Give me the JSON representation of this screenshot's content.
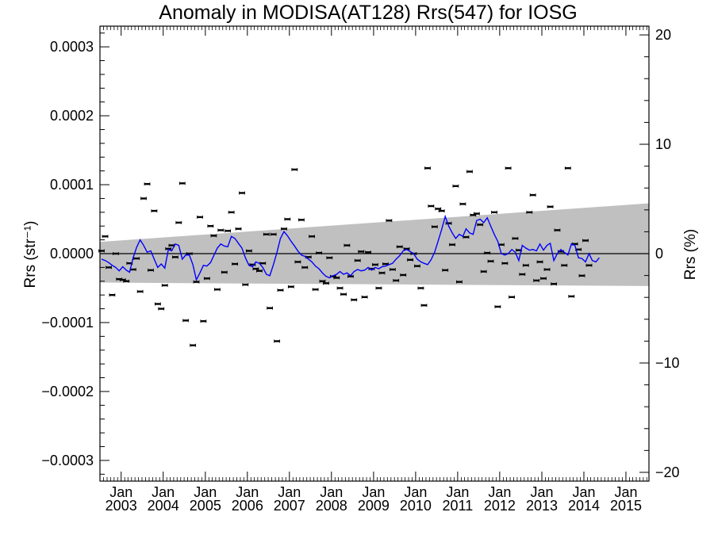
{
  "chart_data": {
    "type": "scatter",
    "title": "Anomaly in MODISA(AT128) Rrs(547) for IOSG",
    "ylabel_left": "Rrs (str⁻¹)",
    "ylabel_right": "Rrs (%)",
    "xlim": [
      "2002-07-01",
      "2015-07-20"
    ],
    "ylim_left": [
      -0.00033,
      0.00033
    ],
    "ylim_right": [
      -20.8,
      20.8
    ],
    "yticks_left": [
      "0.0003",
      "0.0002",
      "0.0001",
      "0.0000",
      "−0.0001",
      "−0.0002",
      "−0.0003"
    ],
    "yticks_right": [
      "20",
      "10",
      "0",
      "−10",
      "−20"
    ],
    "xticks": [
      {
        "month": "Jan",
        "year": "2003"
      },
      {
        "month": "Jan",
        "year": "2004"
      },
      {
        "month": "Jan",
        "year": "2005"
      },
      {
        "month": "Jan",
        "year": "2006"
      },
      {
        "month": "Jan",
        "year": "2007"
      },
      {
        "month": "Jan",
        "year": "2008"
      },
      {
        "month": "Jan",
        "year": "2009"
      },
      {
        "month": "Jan",
        "year": "2010"
      },
      {
        "month": "Jan",
        "year": "2011"
      },
      {
        "month": "Jan",
        "year": "2012"
      },
      {
        "month": "Jan",
        "year": "2013"
      },
      {
        "month": "Jan",
        "year": "2014"
      },
      {
        "month": "Jan",
        "year": "2015"
      }
    ],
    "band": {
      "start": "2002-07-01",
      "end": "2015-07-20",
      "upper": [
        1.7e-05,
        7.3e-05
      ],
      "lower": [
        -4.2e-05,
        -4.7e-05
      ],
      "color": "#c0c0c0"
    },
    "zero_line": 0.0,
    "series": [
      {
        "kind": "monthly_points",
        "color": "#000000",
        "start": "2002-07",
        "values": [
          4e-06,
          2.5e-05,
          -2e-05,
          -6e-05,
          0.0,
          -3.7e-05,
          -3.8e-05,
          -4e-05,
          -1.4e-05,
          -2.3e-05,
          -7e-06,
          -5.5e-05,
          8e-05,
          0.000101,
          -2.4e-05,
          6.2e-05,
          -7.3e-05,
          -8e-05,
          -4.6e-05,
          7e-06,
          1.2e-05,
          -5e-06,
          4.5e-05,
          0.000102,
          -9.7e-05,
          0.0,
          -0.000133,
          -4.1e-05,
          5.3e-05,
          -9.8e-05,
          -3.6e-05,
          4e-05,
          2.6e-05,
          -5.2e-05,
          3.4e-05,
          -2.7e-05,
          3.3e-05,
          6e-05,
          -1.5e-05,
          3.6e-05,
          8.8e-05,
          -4.5e-05,
          4e-06,
          -1.6e-05,
          -2.2e-05,
          -2.5e-05,
          -1.4e-05,
          2.8e-05,
          -7.9e-05,
          2.8e-05,
          -0.000127,
          -5.3e-05,
          3.6e-05,
          5e-05,
          -4.8e-05,
          0.000122,
          -1.2e-05,
          4.9e-05,
          -2e-05,
          -5e-06,
          2.5e-05,
          -5.2e-05,
          1e-06,
          -4e-05,
          -4.3e-05,
          -6e-06,
          -3.3e-05,
          -3.5e-05,
          -5e-05,
          -5.9e-05,
          1.2e-05,
          -3.3e-05,
          -6.7e-05,
          -1e-05,
          3e-06,
          -6.3e-05,
          2e-06,
          -2.2e-05,
          -1.6e-05,
          -5e-05,
          -2.8e-05,
          -1.5e-05,
          4.8e-05,
          -2.3e-05,
          -3.9e-05,
          1e-05,
          -3.1e-05,
          7e-06,
          -9e-06,
          0.0,
          -1.8e-05,
          -5e-05,
          -7.5e-05,
          0.000124,
          6.9e-05,
          3.9e-05,
          6.5e-05,
          6.2e-05,
          -2.4e-05,
          4.4e-05,
          1.3e-05,
          9.8e-05,
          -4.1e-05,
          7.2e-05,
          2.4e-05,
          0.000119,
          5.6e-05,
          5.8e-05,
          4.2e-05,
          -2.6e-05,
          1e-06,
          -1.1e-05,
          6e-05,
          -7.7e-05,
          1.3e-05,
          -1.4e-05,
          0.000124,
          -6.3e-05,
          2.2e-05,
          5e-06,
          -3e-05,
          -1.7e-05,
          6e-05,
          8.5e-05,
          -3.9e-05,
          -1.2e-05,
          -3.6e-05,
          -2.3e-05,
          6.8e-05,
          -4.4e-05,
          3.4e-05,
          3e-06,
          -1.7e-05,
          0.000124,
          -6.2e-05,
          1.4e-05,
          6e-06,
          -3.2e-05,
          1.9e-05,
          -1.7e-05
        ]
      },
      {
        "kind": "running_mean",
        "color": "#0000ff",
        "start": "2002-07",
        "values": [
          -8e-06,
          -1e-05,
          -1.3e-05,
          -1.7e-05,
          -2e-05,
          -2.5e-05,
          -1.9e-05,
          -2.4e-05,
          -2.7e-05,
          -6e-06,
          9e-06,
          2e-05,
          1.2e-05,
          2e-06,
          4e-06,
          -8e-06,
          -2e-05,
          -1.5e-05,
          -2.1e-05,
          6e-06,
          4e-06,
          1.4e-05,
          1.2e-05,
          -8e-06,
          -2e-06,
          -2e-06,
          -1.6e-05,
          -3.8e-05,
          -2.8e-05,
          -1.7e-05,
          -1.8e-05,
          -1.3e-05,
          -3e-06,
          8e-06,
          1.4e-05,
          1.1e-05,
          1e-05,
          2.5e-05,
          2.2e-05,
          1.5e-05,
          8e-06,
          -6e-06,
          -1.7e-05,
          -1.9e-05,
          -1.2e-05,
          -1.4e-05,
          -2e-05,
          -3e-05,
          -3.2e-05,
          -1.6e-05,
          2e-06,
          2.2e-05,
          3.2e-05,
          2.6e-05,
          1.8e-05,
          1.1e-05,
          4e-06,
          -2e-06,
          -4e-06,
          -8e-06,
          -1.2e-05,
          -1.8e-05,
          -2.2e-05,
          -2.8e-05,
          -3.3e-05,
          -3.5e-05,
          -3.2e-05,
          -3e-05,
          -2.6e-05,
          -3e-05,
          -2.8e-05,
          -3.2e-05,
          -2.6e-05,
          -2.3e-05,
          -2.5e-05,
          -2.4e-05,
          -2e-05,
          -2.4e-05,
          -2e-05,
          -2.2e-05,
          -1.9e-05,
          -1.8e-05,
          -1.6e-05,
          -1.4e-05,
          -8e-06,
          -3e-06,
          4e-06,
          6e-06,
          3e-06,
          0.0,
          -8e-06,
          -1.2e-05,
          -1.4e-05,
          -1.6e-05,
          -9e-06,
          2e-06,
          1.8e-05,
          3.5e-05,
          5.4e-05,
          4e-05,
          3e-05,
          2.2e-05,
          2.8e-05,
          2.5e-05,
          3.6e-05,
          3e-05,
          2.8e-05,
          4.8e-05,
          5e-05,
          4.5e-05,
          5.2e-05,
          4e-05,
          2.8e-05,
          1.8e-05,
          0.0,
          -2e-06,
          0.0,
          6e-06,
          2e-06,
          -1e-05,
          1.2e-05,
          8e-06,
          5e-06,
          6e-06,
          4e-06,
          1.4e-05,
          5e-06,
          1.2e-05,
          1.5e-05,
          -1e-05,
          0.0,
          6e-06,
          2e-06,
          -2e-06,
          1.4e-05,
          1.2e-05,
          -6e-06,
          -7e-06,
          -1.2e-05,
          0.0,
          -1e-05,
          -1.2e-05,
          -6e-06
        ]
      }
    ]
  }
}
